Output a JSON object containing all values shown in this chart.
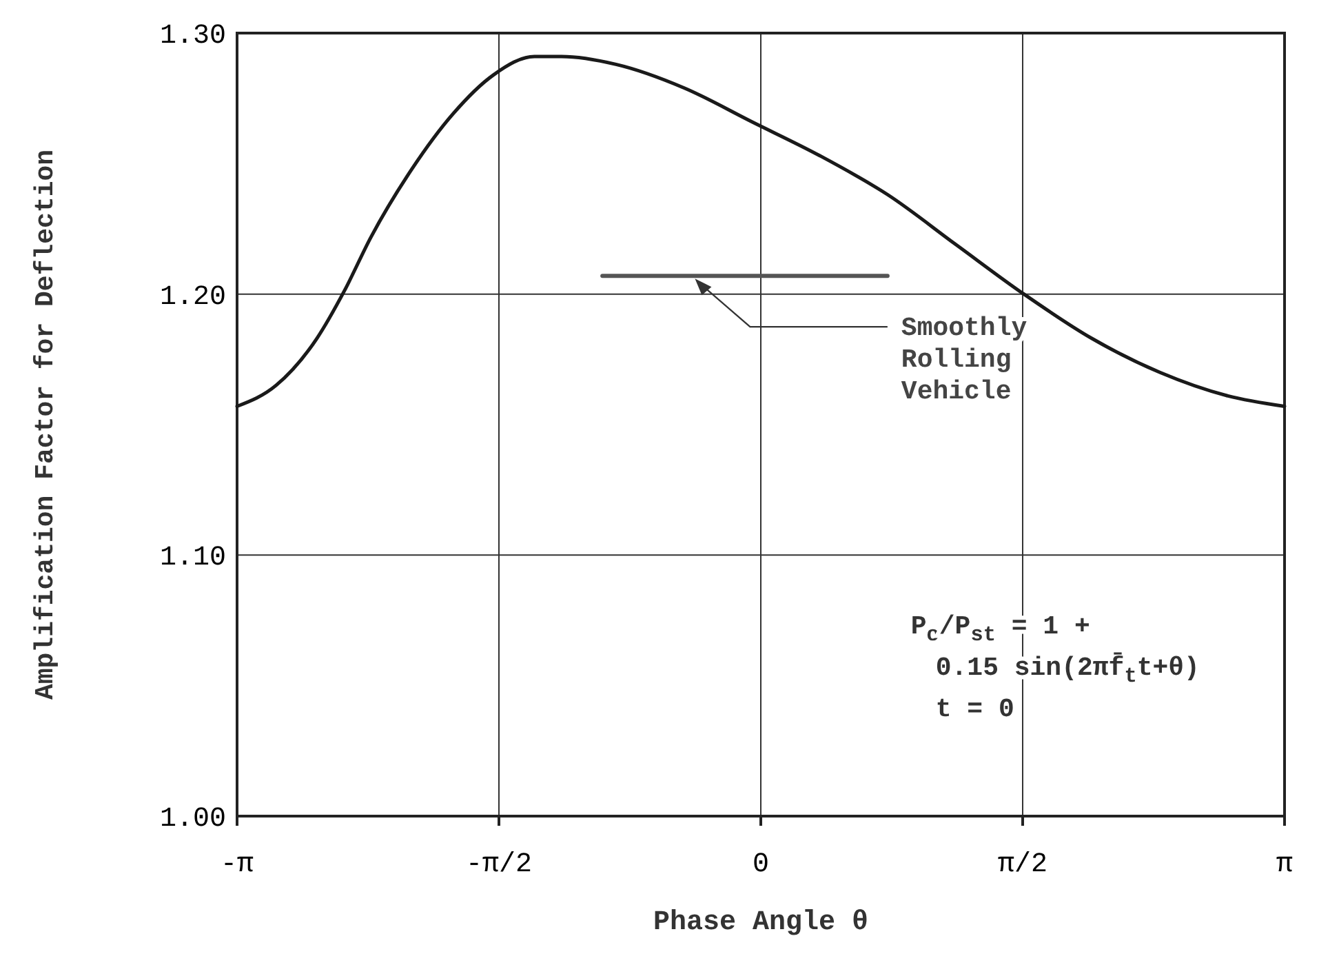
{
  "chart_data": {
    "type": "line",
    "xlabel": "Phase Angle θ",
    "ylabel": "Amplification Factor for Deflection",
    "xlim": [
      -3.1416,
      3.1416
    ],
    "ylim": [
      1.0,
      1.3
    ],
    "xticks": [
      {
        "value": -3.1416,
        "label": "-π"
      },
      {
        "value": -1.5708,
        "label": "-π/2"
      },
      0,
      {
        "value": 1.5708,
        "label": "π/2"
      },
      {
        "value": 3.1416,
        "label": "π"
      }
    ],
    "yticks": [
      {
        "value": 1.0,
        "label": "1.00"
      },
      {
        "value": 1.1,
        "label": "1.10"
      },
      {
        "value": 1.2,
        "label": "1.20"
      },
      {
        "value": 1.3,
        "label": "1.30"
      }
    ],
    "grid": true,
    "marker": "none",
    "line_style": "solid",
    "series": [
      {
        "color": "#1a1a1a",
        "x": [
          -3.1416,
          -2.908,
          -2.663,
          -2.5,
          -2.337,
          -2.092,
          -1.847,
          -1.603,
          -1.358,
          -1.195,
          -0.869,
          -0.461,
          -0.053,
          0.355,
          0.763,
          1.17,
          1.578,
          1.986,
          2.394,
          2.802,
          3.1416
        ],
        "values": [
          1.157,
          1.165,
          1.183,
          1.201,
          1.222,
          1.248,
          1.269,
          1.284,
          1.291,
          1.291,
          1.288,
          1.279,
          1.266,
          1.253,
          1.238,
          1.219,
          1.2,
          1.183,
          1.17,
          1.161,
          1.157
        ]
      },
      {
        "name": "Smoothly Rolling Vehicle",
        "color": "#555555",
        "x": [
          -0.95,
          0.76
        ],
        "values": [
          1.207,
          1.207
        ]
      }
    ],
    "annotations": [
      "P$_{o}$/P$_{st}$ = 1 +",
      "0.15 sin(2πf̄$_{t}$t+θ)",
      "t = 0"
    ]
  }
}
